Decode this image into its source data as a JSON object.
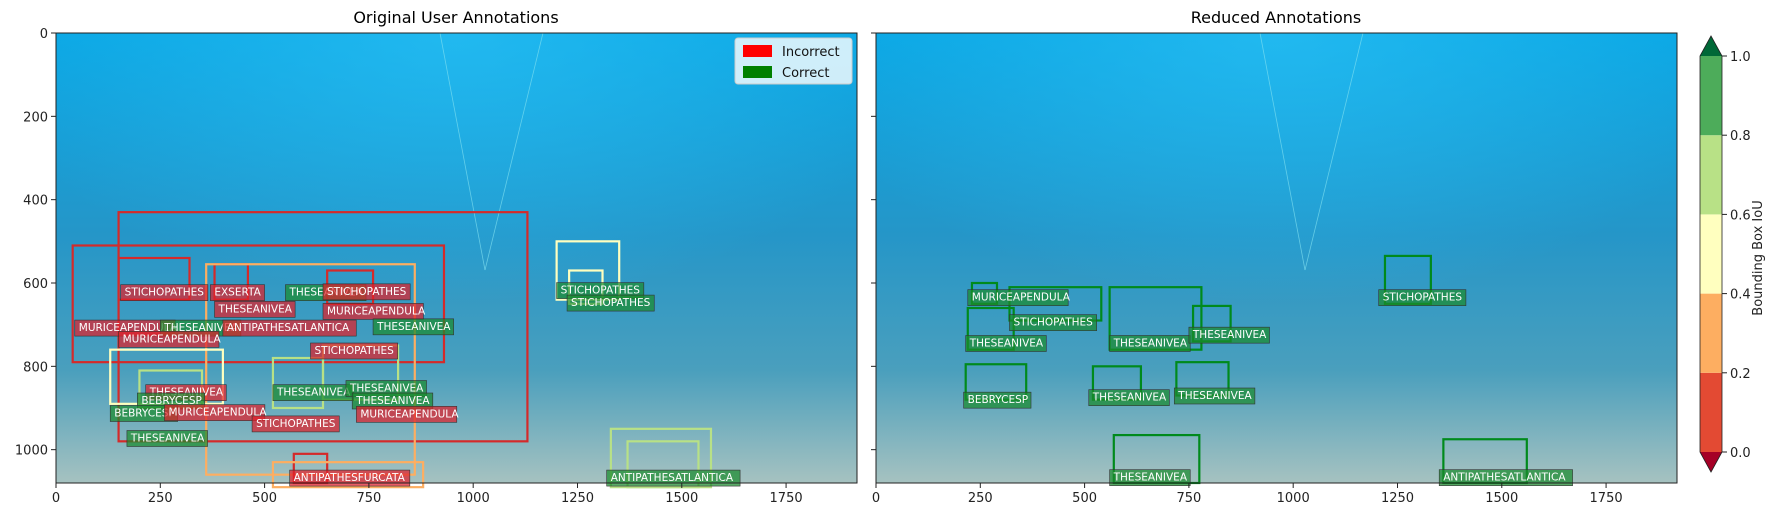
{
  "chart_data": [
    {
      "type": "annotated-image",
      "title": "Original User Annotations",
      "xlim": [
        0,
        1920
      ],
      "ylim": [
        1080,
        0
      ],
      "xticks": [
        0,
        250,
        500,
        750,
        1000,
        1250,
        1500,
        1750
      ],
      "yticks": [
        0,
        200,
        400,
        600,
        800,
        1000
      ],
      "legend": {
        "position": "top-right",
        "entries": [
          {
            "label": "Incorrect",
            "color": "#ff0000"
          },
          {
            "label": "Correct",
            "color": "#008000"
          }
        ]
      },
      "boxes": [
        {
          "x0": 150,
          "y0": 430,
          "x1": 1130,
          "y1": 980,
          "iou": 0.05
        },
        {
          "x0": 40,
          "y0": 510,
          "x1": 930,
          "y1": 790,
          "iou": 0.08
        },
        {
          "x0": 150,
          "y0": 540,
          "x1": 320,
          "y1": 640,
          "iou": 0.1
        },
        {
          "x0": 380,
          "y0": 555,
          "x1": 460,
          "y1": 640,
          "iou": 0.12
        },
        {
          "x0": 650,
          "y0": 570,
          "x1": 760,
          "y1": 650,
          "iou": 0.15
        },
        {
          "x0": 360,
          "y0": 555,
          "x1": 860,
          "y1": 1060,
          "iou": 0.3
        },
        {
          "x0": 130,
          "y0": 760,
          "x1": 400,
          "y1": 890,
          "iou": 0.45
        },
        {
          "x0": 200,
          "y0": 810,
          "x1": 350,
          "y1": 900,
          "iou": 0.75
        },
        {
          "x0": 520,
          "y0": 780,
          "x1": 640,
          "y1": 900,
          "iou": 0.7
        },
        {
          "x0": 640,
          "y0": 750,
          "x1": 820,
          "y1": 880,
          "iou": 0.8
        },
        {
          "x0": 1200,
          "y0": 500,
          "x1": 1350,
          "y1": 640,
          "iou": 0.55
        },
        {
          "x0": 1230,
          "y0": 570,
          "x1": 1310,
          "y1": 650,
          "iou": 0.6
        },
        {
          "x0": 1330,
          "y0": 950,
          "x1": 1570,
          "y1": 1090,
          "iou": 0.65
        },
        {
          "x0": 1370,
          "y0": 980,
          "x1": 1540,
          "y1": 1090,
          "iou": 0.8
        },
        {
          "x0": 570,
          "y0": 1010,
          "x1": 650,
          "y1": 1080,
          "iou": 0.15
        },
        {
          "x0": 520,
          "y0": 1030,
          "x1": 880,
          "y1": 1090,
          "iou": 0.3
        }
      ],
      "labels": [
        {
          "text": "STICHOPATHES",
          "x": 155,
          "y": 640,
          "status": "Incorrect"
        },
        {
          "text": "EXSERTA",
          "x": 370,
          "y": 640,
          "status": "Incorrect"
        },
        {
          "text": "THESEANIVEA",
          "x": 550,
          "y": 640,
          "status": "Correct"
        },
        {
          "text": "STICHOPATHES",
          "x": 640,
          "y": 638,
          "status": "Incorrect"
        },
        {
          "text": "THESEANIVEA",
          "x": 380,
          "y": 680,
          "status": "Incorrect"
        },
        {
          "text": "MURICEAPENDULA",
          "x": 640,
          "y": 685,
          "status": "Incorrect"
        },
        {
          "text": "MURICEAPENDULA",
          "x": 45,
          "y": 725,
          "status": "Incorrect"
        },
        {
          "text": "THESEANIVEA",
          "x": 250,
          "y": 725,
          "status": "Correct"
        },
        {
          "text": "ANTIPATHESATLANTICA",
          "x": 400,
          "y": 725,
          "status": "Incorrect"
        },
        {
          "text": "THESEANIVEA",
          "x": 760,
          "y": 722,
          "status": "Correct"
        },
        {
          "text": "MURICEAPENDULA",
          "x": 150,
          "y": 752,
          "status": "Incorrect"
        },
        {
          "text": "STICHOPATHES",
          "x": 610,
          "y": 780,
          "status": "Incorrect"
        },
        {
          "text": "THESEANIVEA",
          "x": 215,
          "y": 880,
          "status": "Incorrect"
        },
        {
          "text": "THESEANIVEA",
          "x": 520,
          "y": 880,
          "status": "Correct"
        },
        {
          "text": "THESEANIVEA",
          "x": 695,
          "y": 870,
          "status": "Correct"
        },
        {
          "text": "BEBRYCESP",
          "x": 195,
          "y": 900,
          "status": "Correct"
        },
        {
          "text": "THESEANIVEA",
          "x": 710,
          "y": 900,
          "status": "Correct"
        },
        {
          "text": "BEBRYCESP",
          "x": 130,
          "y": 930,
          "status": "Correct"
        },
        {
          "text": "MURICEAPENDULA",
          "x": 260,
          "y": 928,
          "status": "Incorrect"
        },
        {
          "text": "MURICEAPENDULA",
          "x": 720,
          "y": 932,
          "status": "Incorrect"
        },
        {
          "text": "STICHOPATHES",
          "x": 470,
          "y": 955,
          "status": "Incorrect"
        },
        {
          "text": "THESEANIVEA",
          "x": 170,
          "y": 990,
          "status": "Correct"
        },
        {
          "text": "STICHOPATHES",
          "x": 1200,
          "y": 635,
          "status": "Correct"
        },
        {
          "text": "STICHOPATHES",
          "x": 1225,
          "y": 665,
          "status": "Correct"
        },
        {
          "text": "ANTIPATHESFURCATA",
          "x": 560,
          "y": 1085,
          "status": "Incorrect"
        },
        {
          "text": "ANTIPATHESATLANTICA",
          "x": 1320,
          "y": 1085,
          "status": "Correct"
        }
      ]
    },
    {
      "type": "annotated-image",
      "title": "Reduced Annotations",
      "xlim": [
        0,
        1920
      ],
      "ylim": [
        1080,
        0
      ],
      "xticks": [
        0,
        250,
        500,
        750,
        1000,
        1250,
        1500,
        1750
      ],
      "yticks": [
        0,
        200,
        400,
        600,
        800,
        1000
      ],
      "boxes": [
        {
          "x0": 230,
          "y0": 600,
          "x1": 290,
          "y1": 650,
          "iou": 1.0
        },
        {
          "x0": 320,
          "y0": 610,
          "x1": 540,
          "y1": 690,
          "iou": 1.0
        },
        {
          "x0": 220,
          "y0": 660,
          "x1": 330,
          "y1": 760,
          "iou": 1.0
        },
        {
          "x0": 560,
          "y0": 610,
          "x1": 780,
          "y1": 760,
          "iou": 1.0
        },
        {
          "x0": 760,
          "y0": 655,
          "x1": 850,
          "y1": 740,
          "iou": 1.0
        },
        {
          "x0": 1220,
          "y0": 535,
          "x1": 1330,
          "y1": 650,
          "iou": 1.0
        },
        {
          "x0": 215,
          "y0": 795,
          "x1": 360,
          "y1": 880,
          "iou": 1.0
        },
        {
          "x0": 520,
          "y0": 800,
          "x1": 635,
          "y1": 880,
          "iou": 1.0
        },
        {
          "x0": 720,
          "y0": 790,
          "x1": 845,
          "y1": 870,
          "iou": 1.0
        },
        {
          "x0": 570,
          "y0": 965,
          "x1": 775,
          "y1": 1080,
          "iou": 1.0
        },
        {
          "x0": 1360,
          "y0": 975,
          "x1": 1560,
          "y1": 1080,
          "iou": 1.0
        }
      ],
      "labels": [
        {
          "text": "MURICEAPENDULA",
          "x": 220,
          "y": 652,
          "status": "Correct"
        },
        {
          "text": "STICHOPATHES",
          "x": 320,
          "y": 712,
          "status": "Correct"
        },
        {
          "text": "THESEANIVEA",
          "x": 215,
          "y": 762,
          "status": "Correct"
        },
        {
          "text": "THESEANIVEA",
          "x": 560,
          "y": 762,
          "status": "Correct"
        },
        {
          "text": "THESEANIVEA",
          "x": 750,
          "y": 742,
          "status": "Correct"
        },
        {
          "text": "STICHOPATHES",
          "x": 1205,
          "y": 652,
          "status": "Correct"
        },
        {
          "text": "BEBRYCESP",
          "x": 210,
          "y": 898,
          "status": "Correct"
        },
        {
          "text": "THESEANIVEA",
          "x": 510,
          "y": 892,
          "status": "Correct"
        },
        {
          "text": "THESEANIVEA",
          "x": 715,
          "y": 888,
          "status": "Correct"
        },
        {
          "text": "THESEANIVEA",
          "x": 560,
          "y": 1084,
          "status": "Correct"
        },
        {
          "text": "ANTIPATHESATLANTICA",
          "x": 1350,
          "y": 1084,
          "status": "Correct"
        }
      ]
    },
    {
      "type": "colorbar",
      "label": "Bounding Box IoU",
      "range": [
        0.0,
        1.0
      ],
      "ticks": [
        "0.0",
        "0.2",
        "0.4",
        "0.6",
        "0.8",
        "1.0"
      ],
      "bins": [
        {
          "from": 0.0,
          "to": 0.2,
          "color": "#e34a33"
        },
        {
          "from": 0.2,
          "to": 0.4,
          "color": "#fdae61"
        },
        {
          "from": 0.4,
          "to": 0.6,
          "color": "#ffffbf"
        },
        {
          "from": 0.6,
          "to": 0.8,
          "color": "#b8e186"
        },
        {
          "from": 0.8,
          "to": 1.0,
          "color": "#4dac5a"
        }
      ],
      "under_color": "#a50026",
      "over_color": "#006837"
    }
  ],
  "colors": {
    "incorrect_label": "#e0202a",
    "correct_label": "#1a8a2e",
    "water_top": "#0aa3e0",
    "water_bottom": "#9fbfbe"
  }
}
